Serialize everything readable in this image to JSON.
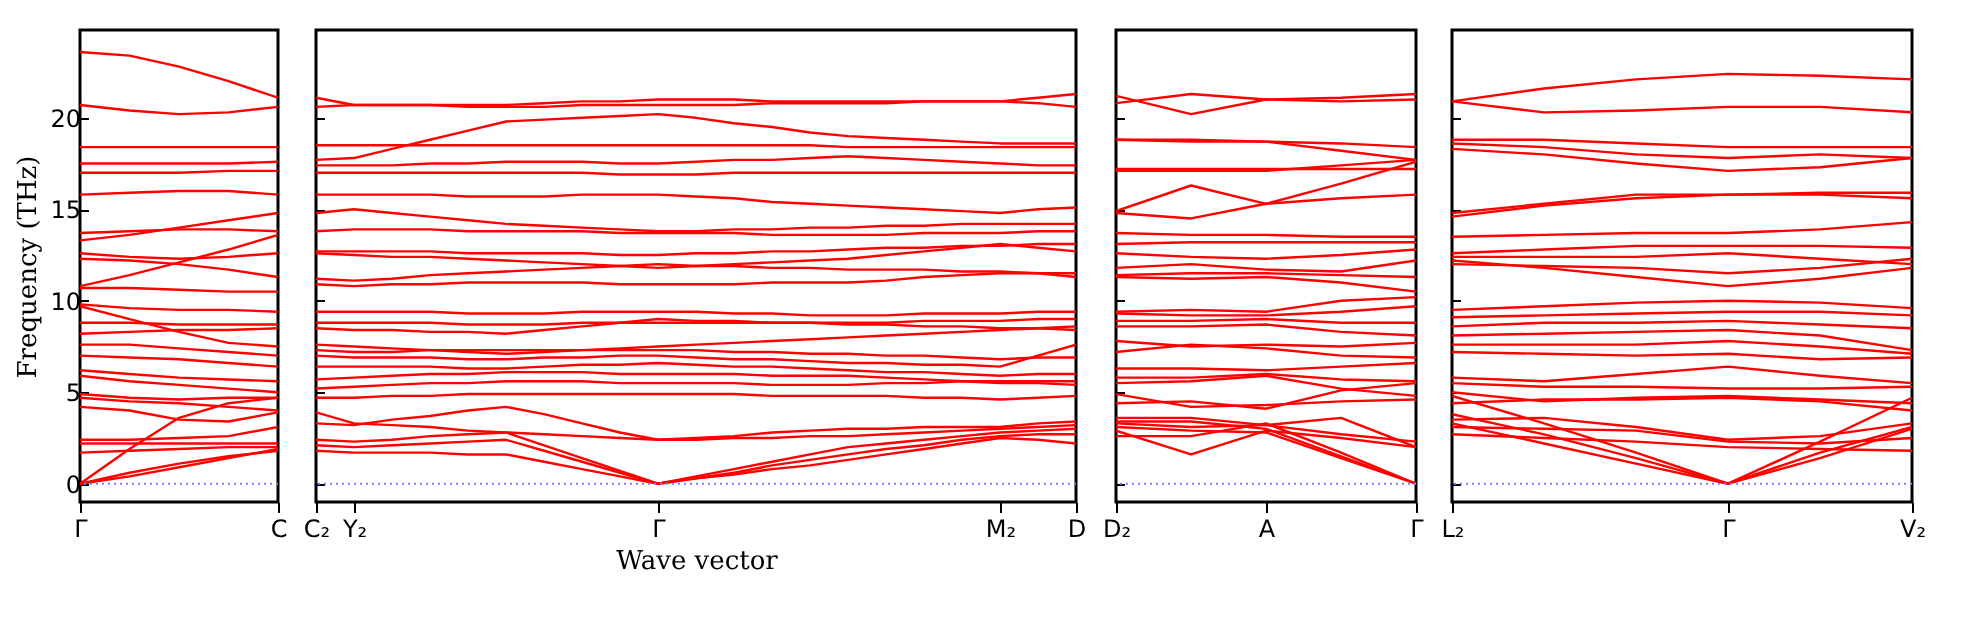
{
  "chart_data": [
    {
      "type": "line",
      "ylabel": "Frequency (THz)",
      "categories": [
        "Γ",
        null,
        null,
        null,
        "C"
      ],
      "ylim": [
        -1,
        24.8
      ],
      "yticks": [
        0,
        5,
        10,
        15,
        20
      ],
      "ref_lines": [
        {
          "axis": "y",
          "value": 0,
          "color": "#7f7fff",
          "line_style": "dotted"
        }
      ],
      "series": [
        {
          "color": "#ff0000",
          "values": [
            23.6,
            23.4,
            22.8,
            22.0,
            21.1
          ]
        },
        {
          "color": "#ff0000",
          "values": [
            20.7,
            20.4,
            20.2,
            20.3,
            20.6
          ]
        },
        {
          "color": "#ff0000",
          "values": [
            18.4,
            18.4,
            18.4,
            18.4,
            18.4
          ]
        },
        {
          "color": "#ff0000",
          "values": [
            17.5,
            17.5,
            17.5,
            17.5,
            17.6
          ]
        },
        {
          "color": "#ff0000",
          "values": [
            17.0,
            17.0,
            17.0,
            17.1,
            17.1
          ]
        },
        {
          "color": "#ff0000",
          "values": [
            15.8,
            15.9,
            16.0,
            16.0,
            15.8
          ]
        },
        {
          "color": "#ff0000",
          "values": [
            13.7,
            13.8,
            13.9,
            13.9,
            13.8
          ]
        },
        {
          "color": "#ff0000",
          "values": [
            13.3,
            13.6,
            14.0,
            14.4,
            14.8
          ]
        },
        {
          "color": "#ff0000",
          "values": [
            12.6,
            12.4,
            12.3,
            12.4,
            12.6
          ]
        },
        {
          "color": "#ff0000",
          "values": [
            10.8,
            11.4,
            12.1,
            12.8,
            13.6
          ]
        },
        {
          "color": "#ff0000",
          "values": [
            12.3,
            12.2,
            12.0,
            11.7,
            11.3
          ]
        },
        {
          "color": "#ff0000",
          "values": [
            10.7,
            10.7,
            10.6,
            10.5,
            10.5
          ]
        },
        {
          "color": "#ff0000",
          "values": [
            9.8,
            9.6,
            9.5,
            9.5,
            9.4
          ]
        },
        {
          "color": "#ff0000",
          "values": [
            9.7,
            9.0,
            8.3,
            7.7,
            7.5
          ]
        },
        {
          "color": "#ff0000",
          "values": [
            8.8,
            8.8,
            8.7,
            8.7,
            8.7
          ]
        },
        {
          "color": "#ff0000",
          "values": [
            8.2,
            8.3,
            8.4,
            8.4,
            8.5
          ]
        },
        {
          "color": "#ff0000",
          "values": [
            7.6,
            7.6,
            7.4,
            7.2,
            7.0
          ]
        },
        {
          "color": "#ff0000",
          "values": [
            7.0,
            6.9,
            6.8,
            6.6,
            6.4
          ]
        },
        {
          "color": "#ff0000",
          "values": [
            6.2,
            6.0,
            5.8,
            5.7,
            5.6
          ]
        },
        {
          "color": "#ff0000",
          "values": [
            5.9,
            5.6,
            5.4,
            5.2,
            5.0
          ]
        },
        {
          "color": "#ff0000",
          "values": [
            4.9,
            4.7,
            4.6,
            4.7,
            4.7
          ]
        },
        {
          "color": "#ff0000",
          "values": [
            4.7,
            4.5,
            4.4,
            4.2,
            4.0
          ]
        },
        {
          "color": "#ff0000",
          "values": [
            4.2,
            4.0,
            3.5,
            3.4,
            3.9
          ]
        },
        {
          "color": "#ff0000",
          "values": [
            2.4,
            2.4,
            2.5,
            2.6,
            3.1
          ]
        },
        {
          "color": "#ff0000",
          "values": [
            2.2,
            2.2,
            2.2,
            2.2,
            2.2
          ]
        },
        {
          "color": "#ff0000",
          "values": [
            1.7,
            1.8,
            1.9,
            2.0,
            2.0
          ]
        },
        {
          "color": "#ff0000",
          "values": [
            0,
            1.9,
            3.6,
            4.4,
            4.7
          ]
        },
        {
          "color": "#ff0000",
          "values": [
            0,
            0.6,
            1.1,
            1.5,
            1.8
          ]
        },
        {
          "color": "#ff0000",
          "values": [
            0,
            0.4,
            0.9,
            1.4,
            1.9
          ]
        }
      ]
    },
    {
      "type": "line",
      "xlabel": "Wave vector",
      "categories": [
        "C₂",
        "Y₂",
        null,
        null,
        null,
        null,
        null,
        null,
        null,
        "Γ",
        null,
        null,
        null,
        null,
        null,
        null,
        null,
        null,
        "M₂",
        null,
        "D"
      ],
      "ylim": [
        -1,
        24.8
      ],
      "yticks": [
        0,
        5,
        10,
        15,
        20
      ],
      "tick_labels": "x",
      "ref_lines": [
        {
          "axis": "y",
          "value": 0,
          "color": "#7f7fff",
          "line_style": "dotted"
        }
      ],
      "series": [
        {
          "color": "#ff0000",
          "values": [
            21.1,
            20.7,
            20.7,
            20.7,
            20.7,
            20.7,
            20.8,
            20.9,
            20.9,
            21.0,
            21.0,
            21.0,
            20.9,
            20.9,
            20.9,
            20.9,
            20.9,
            20.9,
            20.9,
            21.1,
            21.3
          ]
        },
        {
          "color": "#ff0000",
          "values": [
            20.6,
            20.7,
            20.7,
            20.7,
            20.6,
            20.6,
            20.6,
            20.7,
            20.7,
            20.7,
            20.7,
            20.7,
            20.8,
            20.8,
            20.8,
            20.8,
            20.9,
            20.9,
            20.9,
            20.8,
            20.6
          ]
        },
        {
          "color": "#ff0000",
          "values": [
            18.5,
            18.5,
            18.5,
            18.5,
            18.5,
            18.5,
            18.5,
            18.5,
            18.5,
            18.5,
            18.5,
            18.5,
            18.5,
            18.5,
            18.4,
            18.4,
            18.4,
            18.4,
            18.4,
            18.4,
            18.4
          ]
        },
        {
          "color": "#ff0000",
          "values": [
            17.7,
            17.8,
            18.3,
            18.8,
            19.3,
            19.8,
            19.9,
            20.0,
            20.1,
            20.2,
            20.0,
            19.7,
            19.5,
            19.2,
            19.0,
            18.9,
            18.8,
            18.7,
            18.6,
            18.6,
            18.6
          ]
        },
        {
          "color": "#ff0000",
          "values": [
            17.4,
            17.4,
            17.4,
            17.5,
            17.5,
            17.6,
            17.6,
            17.6,
            17.5,
            17.5,
            17.6,
            17.7,
            17.7,
            17.8,
            17.9,
            17.8,
            17.7,
            17.6,
            17.5,
            17.4,
            17.4
          ]
        },
        {
          "color": "#ff0000",
          "values": [
            17.0,
            17.0,
            17.0,
            17.0,
            17.0,
            17.0,
            17.0,
            17.0,
            16.9,
            16.9,
            16.9,
            17.0,
            17.0,
            17.0,
            17.0,
            17.0,
            17.0,
            17.0,
            17.0,
            17.0,
            17.0
          ]
        },
        {
          "color": "#ff0000",
          "values": [
            15.8,
            15.8,
            15.8,
            15.8,
            15.7,
            15.7,
            15.7,
            15.8,
            15.8,
            15.8,
            15.7,
            15.6,
            15.4,
            15.3,
            15.2,
            15.1,
            15.0,
            14.9,
            14.8,
            15.0,
            15.1
          ]
        },
        {
          "color": "#ff0000",
          "values": [
            14.8,
            15.0,
            14.8,
            14.6,
            14.4,
            14.2,
            14.1,
            14.0,
            13.9,
            13.8,
            13.8,
            13.9,
            13.9,
            14.0,
            14.0,
            14.1,
            14.1,
            14.2,
            14.2,
            14.2,
            14.2
          ]
        },
        {
          "color": "#ff0000",
          "values": [
            13.8,
            13.9,
            13.9,
            13.9,
            13.8,
            13.8,
            13.8,
            13.8,
            13.7,
            13.7,
            13.7,
            13.7,
            13.6,
            13.6,
            13.6,
            13.6,
            13.7,
            13.7,
            13.7,
            13.8,
            13.8
          ]
        },
        {
          "color": "#ff0000",
          "values": [
            12.7,
            12.7,
            12.7,
            12.7,
            12.6,
            12.6,
            12.6,
            12.6,
            12.5,
            12.5,
            12.6,
            12.6,
            12.7,
            12.7,
            12.8,
            12.9,
            12.9,
            13.0,
            13.0,
            13.1,
            13.1
          ]
        },
        {
          "color": "#ff0000",
          "values": [
            12.6,
            12.5,
            12.4,
            12.4,
            12.3,
            12.2,
            12.1,
            12.0,
            11.9,
            11.8,
            11.9,
            12.0,
            12.1,
            12.2,
            12.3,
            12.5,
            12.7,
            12.9,
            13.1,
            12.9,
            12.7
          ]
        },
        {
          "color": "#ff0000",
          "values": [
            11.2,
            11.1,
            11.2,
            11.4,
            11.5,
            11.6,
            11.7,
            11.8,
            11.9,
            12.0,
            11.9,
            11.9,
            11.8,
            11.8,
            11.7,
            11.7,
            11.7,
            11.6,
            11.6,
            11.5,
            11.3
          ]
        },
        {
          "color": "#ff0000",
          "values": [
            10.9,
            10.8,
            10.9,
            10.9,
            11.0,
            11.0,
            11.0,
            11.0,
            10.9,
            10.9,
            10.9,
            10.9,
            11.0,
            11.0,
            11.0,
            11.1,
            11.3,
            11.4,
            11.5,
            11.5,
            11.5
          ]
        },
        {
          "color": "#ff0000",
          "values": [
            9.4,
            9.4,
            9.4,
            9.4,
            9.3,
            9.3,
            9.3,
            9.4,
            9.4,
            9.4,
            9.4,
            9.3,
            9.3,
            9.2,
            9.2,
            9.2,
            9.3,
            9.3,
            9.3,
            9.4,
            9.4
          ]
        },
        {
          "color": "#ff0000",
          "values": [
            8.8,
            8.8,
            8.8,
            8.8,
            8.7,
            8.7,
            8.7,
            8.8,
            8.8,
            8.8,
            8.8,
            8.8,
            8.8,
            8.8,
            8.8,
            8.8,
            8.9,
            8.9,
            8.9,
            9.0,
            9.0
          ]
        },
        {
          "color": "#ff0000",
          "values": [
            8.5,
            8.4,
            8.4,
            8.3,
            8.3,
            8.2,
            8.4,
            8.6,
            8.8,
            9.0,
            8.9,
            8.9,
            8.8,
            8.8,
            8.7,
            8.7,
            8.6,
            8.6,
            8.5,
            8.5,
            8.4
          ]
        },
        {
          "color": "#ff0000",
          "values": [
            7.6,
            7.5,
            7.4,
            7.3,
            7.2,
            7.1,
            7.2,
            7.3,
            7.4,
            7.5,
            7.6,
            7.7,
            7.8,
            7.9,
            8.0,
            8.1,
            8.2,
            8.3,
            8.4,
            8.5,
            8.6
          ]
        },
        {
          "color": "#ff0000",
          "values": [
            7.3,
            7.2,
            7.2,
            7.3,
            7.3,
            7.3,
            7.3,
            7.3,
            7.3,
            7.3,
            7.3,
            7.2,
            7.2,
            7.1,
            7.1,
            7.0,
            7.0,
            6.9,
            6.8,
            6.9,
            6.9
          ]
        },
        {
          "color": "#ff0000",
          "values": [
            7.0,
            6.9,
            6.9,
            6.9,
            6.8,
            6.8,
            6.9,
            6.9,
            7.0,
            7.0,
            6.9,
            6.8,
            6.8,
            6.7,
            6.6,
            6.6,
            6.5,
            6.5,
            6.4,
            7.0,
            7.6
          ]
        },
        {
          "color": "#ff0000",
          "values": [
            6.4,
            6.4,
            6.4,
            6.4,
            6.3,
            6.3,
            6.4,
            6.5,
            6.5,
            6.6,
            6.5,
            6.4,
            6.4,
            6.3,
            6.2,
            6.1,
            6.1,
            6.0,
            5.9,
            6.0,
            6.0
          ]
        },
        {
          "color": "#ff0000",
          "values": [
            5.7,
            5.8,
            5.9,
            6.0,
            6.0,
            6.1,
            6.1,
            6.1,
            6.0,
            6.0,
            6.0,
            6.0,
            5.9,
            5.9,
            5.9,
            5.8,
            5.7,
            5.6,
            5.5,
            5.5,
            5.4
          ]
        },
        {
          "color": "#ff0000",
          "values": [
            5.2,
            5.3,
            5.4,
            5.5,
            5.5,
            5.6,
            5.6,
            5.6,
            5.5,
            5.5,
            5.5,
            5.5,
            5.4,
            5.4,
            5.4,
            5.5,
            5.5,
            5.6,
            5.6,
            5.6,
            5.6
          ]
        },
        {
          "color": "#ff0000",
          "values": [
            4.7,
            4.7,
            4.8,
            4.8,
            4.9,
            4.9,
            4.9,
            4.9,
            4.9,
            4.9,
            4.9,
            4.9,
            4.8,
            4.8,
            4.8,
            4.8,
            4.7,
            4.7,
            4.6,
            4.7,
            4.8
          ]
        },
        {
          "color": "#ff0000",
          "values": [
            3.9,
            3.3,
            3.2,
            3.1,
            2.9,
            2.8,
            2.7,
            2.6,
            2.5,
            2.4,
            2.4,
            2.5,
            2.5,
            2.6,
            2.6,
            2.7,
            2.8,
            2.9,
            3.0,
            3.1,
            3.2
          ]
        },
        {
          "color": "#ff0000",
          "values": [
            3.3,
            3.2,
            3.5,
            3.7,
            4.0,
            4.2,
            3.8,
            3.3,
            2.8,
            2.4,
            2.5,
            2.6,
            2.8,
            2.9,
            3.0,
            3.0,
            3.1,
            3.1,
            3.1,
            3.3,
            3.4
          ]
        },
        {
          "color": "#ff0000",
          "values": [
            2.4,
            2.3,
            2.4,
            2.6,
            2.7,
            2.8,
            2.1,
            1.4,
            0.7,
            0,
            0.4,
            0.8,
            1.2,
            1.6,
            2.0,
            2.2,
            2.4,
            2.6,
            2.8,
            2.9,
            3.0
          ]
        },
        {
          "color": "#ff0000",
          "values": [
            2.1,
            2.0,
            2.1,
            2.2,
            2.3,
            2.4,
            1.8,
            1.2,
            0.6,
            0,
            0.3,
            0.6,
            1.0,
            1.3,
            1.6,
            1.9,
            2.1,
            2.4,
            2.6,
            2.7,
            2.7
          ]
        },
        {
          "color": "#ff0000",
          "values": [
            1.8,
            1.7,
            1.7,
            1.7,
            1.6,
            1.6,
            1.2,
            0.8,
            0.4,
            0,
            0.3,
            0.5,
            0.8,
            1.0,
            1.3,
            1.6,
            1.9,
            2.2,
            2.5,
            2.4,
            2.2
          ]
        }
      ]
    },
    {
      "type": "line",
      "categories": [
        "D₂",
        null,
        "A",
        null,
        "Γ"
      ],
      "ylim": [
        -1,
        24.8
      ],
      "yticks": [
        0,
        5,
        10,
        15,
        20
      ],
      "tick_labels": "x",
      "ref_lines": [
        {
          "axis": "y",
          "value": 0,
          "color": "#7f7fff",
          "line_style": "dotted"
        }
      ],
      "series": [
        {
          "color": "#ff0000",
          "values": [
            21.2,
            20.2,
            21.0,
            20.9,
            21.0
          ]
        },
        {
          "color": "#ff0000",
          "values": [
            20.8,
            21.3,
            21.0,
            21.1,
            21.3
          ]
        },
        {
          "color": "#ff0000",
          "values": [
            18.8,
            18.8,
            18.7,
            18.6,
            18.4
          ]
        },
        {
          "color": "#ff0000",
          "values": [
            18.8,
            18.7,
            18.7,
            18.2,
            17.7
          ]
        },
        {
          "color": "#ff0000",
          "values": [
            17.2,
            17.2,
            17.2,
            17.2,
            17.2
          ]
        },
        {
          "color": "#ff0000",
          "values": [
            17.1,
            17.1,
            17.1,
            17.4,
            17.7
          ]
        },
        {
          "color": "#ff0000",
          "values": [
            14.9,
            16.3,
            15.3,
            15.6,
            15.8
          ]
        },
        {
          "color": "#ff0000",
          "values": [
            14.8,
            14.5,
            15.3,
            16.4,
            17.6
          ]
        },
        {
          "color": "#ff0000",
          "values": [
            13.7,
            13.6,
            13.6,
            13.5,
            13.5
          ]
        },
        {
          "color": "#ff0000",
          "values": [
            13.1,
            13.2,
            13.2,
            13.2,
            13.2
          ]
        },
        {
          "color": "#ff0000",
          "values": [
            12.6,
            12.4,
            12.3,
            12.5,
            12.8
          ]
        },
        {
          "color": "#ff0000",
          "values": [
            11.8,
            12.0,
            11.7,
            11.6,
            12.2
          ]
        },
        {
          "color": "#ff0000",
          "values": [
            11.4,
            11.5,
            11.5,
            11.4,
            11.3
          ]
        },
        {
          "color": "#ff0000",
          "values": [
            11.3,
            11.2,
            11.3,
            11.0,
            10.5
          ]
        },
        {
          "color": "#ff0000",
          "values": [
            9.4,
            9.5,
            9.4,
            10.0,
            10.2
          ]
        },
        {
          "color": "#ff0000",
          "values": [
            9.3,
            9.2,
            9.2,
            9.4,
            9.7
          ]
        },
        {
          "color": "#ff0000",
          "values": [
            8.9,
            8.9,
            9.0,
            8.8,
            8.8
          ]
        },
        {
          "color": "#ff0000",
          "values": [
            8.6,
            8.6,
            8.7,
            8.3,
            8.1
          ]
        },
        {
          "color": "#ff0000",
          "values": [
            7.8,
            7.5,
            7.6,
            7.5,
            7.7
          ]
        },
        {
          "color": "#ff0000",
          "values": [
            7.2,
            7.6,
            7.4,
            7.0,
            6.9
          ]
        },
        {
          "color": "#ff0000",
          "values": [
            6.3,
            6.3,
            6.2,
            6.4,
            6.6
          ]
        },
        {
          "color": "#ff0000",
          "values": [
            5.8,
            5.8,
            6.0,
            5.7,
            5.6
          ]
        },
        {
          "color": "#ff0000",
          "values": [
            5.5,
            5.6,
            5.9,
            5.2,
            4.8
          ]
        },
        {
          "color": "#ff0000",
          "values": [
            4.9,
            4.2,
            4.3,
            4.5,
            4.6
          ]
        },
        {
          "color": "#ff0000",
          "values": [
            4.4,
            4.5,
            4.1,
            5.1,
            5.5
          ]
        },
        {
          "color": "#ff0000",
          "values": [
            3.6,
            3.6,
            3.2,
            2.7,
            2.3
          ]
        },
        {
          "color": "#ff0000",
          "values": [
            3.3,
            3.1,
            3.2,
            3.6,
            2.0
          ]
        },
        {
          "color": "#ff0000",
          "values": [
            2.9,
            1.6,
            2.9,
            2.5,
            2.0
          ]
        },
        {
          "color": "#ff0000",
          "values": [
            2.6,
            2.6,
            3.3,
            1.7,
            0
          ]
        },
        {
          "color": "#ff0000",
          "values": [
            3.1,
            2.9,
            2.8,
            1.4,
            0
          ]
        },
        {
          "color": "#ff0000",
          "values": [
            3.4,
            3.4,
            3.0,
            1.5,
            0
          ]
        }
      ]
    },
    {
      "type": "line",
      "categories": [
        "L₂",
        null,
        null,
        "Γ",
        null,
        "V₂"
      ],
      "ylim": [
        -1,
        24.8
      ],
      "yticks": [
        0,
        5,
        10,
        15,
        20
      ],
      "tick_labels": "x",
      "ref_lines": [
        {
          "axis": "y",
          "value": 0,
          "color": "#7f7fff",
          "line_style": "dotted"
        }
      ],
      "series": [
        {
          "color": "#ff0000",
          "values": [
            20.9,
            21.6,
            22.1,
            22.4,
            22.3,
            22.1
          ]
        },
        {
          "color": "#ff0000",
          "values": [
            20.9,
            20.3,
            20.4,
            20.6,
            20.6,
            20.3
          ]
        },
        {
          "color": "#ff0000",
          "values": [
            18.8,
            18.8,
            18.6,
            18.4,
            18.4,
            18.4
          ]
        },
        {
          "color": "#ff0000",
          "values": [
            18.6,
            18.4,
            18.0,
            17.8,
            18.0,
            17.8
          ]
        },
        {
          "color": "#ff0000",
          "values": [
            18.3,
            18.0,
            17.5,
            17.1,
            17.3,
            17.8
          ]
        },
        {
          "color": "#ff0000",
          "values": [
            14.6,
            15.2,
            15.6,
            15.8,
            15.8,
            15.6
          ]
        },
        {
          "color": "#ff0000",
          "values": [
            14.8,
            15.3,
            15.8,
            15.8,
            15.9,
            15.9
          ]
        },
        {
          "color": "#ff0000",
          "values": [
            13.5,
            13.6,
            13.7,
            13.7,
            13.9,
            14.3
          ]
        },
        {
          "color": "#ff0000",
          "values": [
            12.6,
            12.8,
            13.0,
            13.0,
            13.0,
            12.9
          ]
        },
        {
          "color": "#ff0000",
          "values": [
            12.4,
            12.4,
            12.4,
            12.6,
            12.3,
            12.0
          ]
        },
        {
          "color": "#ff0000",
          "values": [
            12.0,
            11.9,
            11.8,
            11.5,
            11.8,
            12.3
          ]
        },
        {
          "color": "#ff0000",
          "values": [
            12.2,
            11.8,
            11.3,
            10.8,
            11.2,
            11.8
          ]
        },
        {
          "color": "#ff0000",
          "values": [
            9.5,
            9.7,
            9.9,
            10.0,
            9.9,
            9.6
          ]
        },
        {
          "color": "#ff0000",
          "values": [
            9.1,
            9.2,
            9.3,
            9.4,
            9.4,
            9.2
          ]
        },
        {
          "color": "#ff0000",
          "values": [
            8.6,
            8.8,
            8.8,
            8.9,
            8.7,
            8.5
          ]
        },
        {
          "color": "#ff0000",
          "values": [
            8.1,
            8.2,
            8.3,
            8.4,
            8.1,
            7.3
          ]
        },
        {
          "color": "#ff0000",
          "values": [
            7.6,
            7.6,
            7.6,
            7.8,
            7.5,
            7.1
          ]
        },
        {
          "color": "#ff0000",
          "values": [
            7.2,
            7.1,
            7.0,
            7.1,
            6.8,
            6.9
          ]
        },
        {
          "color": "#ff0000",
          "values": [
            5.8,
            5.6,
            6.0,
            6.4,
            5.9,
            5.5
          ]
        },
        {
          "color": "#ff0000",
          "values": [
            5.5,
            5.3,
            5.3,
            5.2,
            5.2,
            5.3
          ]
        },
        {
          "color": "#ff0000",
          "values": [
            5.0,
            4.5,
            4.7,
            4.8,
            4.6,
            4.4
          ]
        },
        {
          "color": "#ff0000",
          "values": [
            4.4,
            4.6,
            4.6,
            4.7,
            4.5,
            4.0
          ]
        },
        {
          "color": "#ff0000",
          "values": [
            3.5,
            3.6,
            3.1,
            2.4,
            2.6,
            3.3
          ]
        },
        {
          "color": "#ff0000",
          "values": [
            3.1,
            3.0,
            2.9,
            2.3,
            2.2,
            2.5
          ]
        },
        {
          "color": "#ff0000",
          "values": [
            2.7,
            2.5,
            2.3,
            2.0,
            1.9,
            1.8
          ]
        },
        {
          "color": "#ff0000",
          "values": [
            4.8,
            3.3,
            1.7,
            0,
            2.3,
            4.7
          ]
        },
        {
          "color": "#ff0000",
          "values": [
            3.8,
            2.7,
            1.4,
            0,
            1.7,
            3.1
          ]
        },
        {
          "color": "#ff0000",
          "values": [
            3.3,
            2.2,
            1.1,
            0,
            1.4,
            3.0
          ]
        }
      ]
    }
  ]
}
